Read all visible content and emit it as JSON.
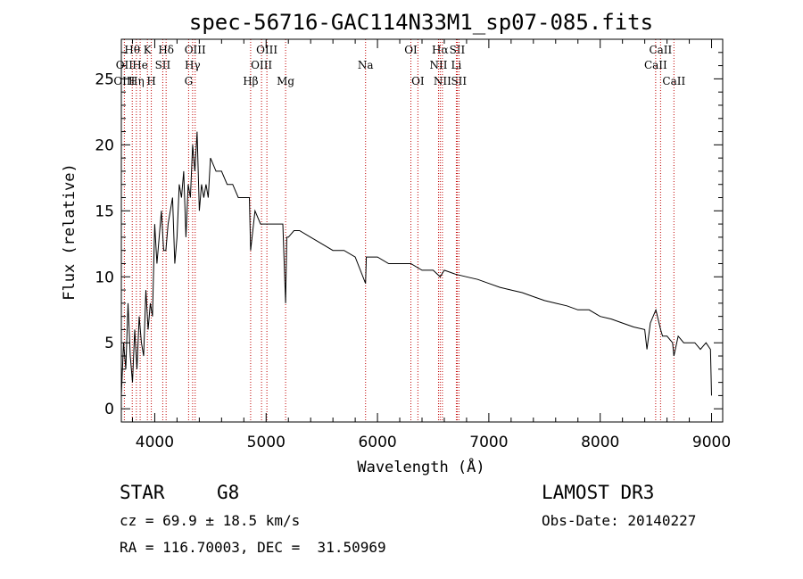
{
  "chart_data": {
    "type": "line",
    "title": "spec-56716-GAC114N33M1_sp07-085.fits",
    "xlabel": "Wavelength (Å)",
    "ylabel": "Flux (relative)",
    "xlim": [
      3700,
      9100
    ],
    "ylim": [
      -1,
      28
    ],
    "xticks": [
      4000,
      5000,
      6000,
      7000,
      8000,
      9000
    ],
    "yticks": [
      0,
      5,
      10,
      15,
      20,
      25
    ],
    "series": [
      {
        "name": "flux",
        "x": [
          3700,
          3720,
          3740,
          3760,
          3780,
          3800,
          3820,
          3840,
          3860,
          3880,
          3900,
          3920,
          3940,
          3960,
          3980,
          4000,
          4020,
          4040,
          4060,
          4080,
          4100,
          4120,
          4140,
          4160,
          4180,
          4200,
          4220,
          4240,
          4260,
          4280,
          4300,
          4320,
          4340,
          4360,
          4380,
          4400,
          4420,
          4440,
          4460,
          4480,
          4500,
          4550,
          4600,
          4650,
          4700,
          4750,
          4800,
          4850,
          4861,
          4900,
          4950,
          5000,
          5050,
          5100,
          5150,
          5175,
          5185,
          5200,
          5250,
          5300,
          5400,
          5500,
          5600,
          5700,
          5800,
          5893,
          5900,
          6000,
          6100,
          6200,
          6300,
          6400,
          6500,
          6563,
          6600,
          6700,
          6800,
          6900,
          7000,
          7100,
          7200,
          7300,
          7400,
          7500,
          7600,
          7700,
          7800,
          7900,
          8000,
          8100,
          8200,
          8300,
          8400,
          8420,
          8450,
          8500,
          8542,
          8560,
          8600,
          8650,
          8662,
          8700,
          8750,
          8800,
          8850,
          8900,
          8950,
          8990,
          9000
        ],
        "y": [
          1,
          5,
          3,
          8,
          4,
          2,
          6,
          3,
          7,
          5,
          4,
          9,
          6,
          8,
          7,
          14,
          11,
          13,
          15,
          12,
          12,
          14,
          15,
          16,
          11,
          13,
          17,
          16,
          18,
          13,
          17,
          16,
          20,
          18,
          21,
          15,
          17,
          16,
          17,
          16,
          19,
          18,
          18,
          17,
          17,
          16,
          16,
          16,
          12,
          15,
          14,
          14,
          14,
          14,
          14,
          8,
          13,
          13,
          13.5,
          13.5,
          13,
          12.5,
          12,
          12,
          11.5,
          9.5,
          11.5,
          11.5,
          11,
          11,
          11,
          10.5,
          10.5,
          10,
          10.5,
          10.2,
          10,
          9.8,
          9.5,
          9.2,
          9,
          8.8,
          8.5,
          8.2,
          8,
          7.8,
          7.5,
          7.5,
          7,
          6.8,
          6.5,
          6.2,
          6,
          4.5,
          6.5,
          7.5,
          6,
          5.5,
          5.5,
          5,
          4,
          5.5,
          5,
          5,
          5,
          4.5,
          5,
          4.5,
          1
        ]
      }
    ],
    "lines": [
      {
        "label": "Hθ",
        "wave": 3798,
        "row": 0
      },
      {
        "label": "OII",
        "wave": 3727,
        "row": 1
      },
      {
        "label": "OIII",
        "wave": 3727,
        "row": 2
      },
      {
        "label": "He",
        "wave": 3869,
        "row": 1
      },
      {
        "label": "Hη",
        "wave": 3835,
        "row": 2
      },
      {
        "label": "K",
        "wave": 3934,
        "row": 0
      },
      {
        "label": "SII",
        "wave": 4072,
        "row": 1
      },
      {
        "label": "H",
        "wave": 3969,
        "row": 2
      },
      {
        "label": "Hδ",
        "wave": 4102,
        "row": 0
      },
      {
        "label": "OIII",
        "wave": 4363,
        "row": 0
      },
      {
        "label": "Hγ",
        "wave": 4340,
        "row": 1
      },
      {
        "label": "G",
        "wave": 4304,
        "row": 2
      },
      {
        "label": "OIII",
        "wave": 5007,
        "row": 0
      },
      {
        "label": "OIII",
        "wave": 4959,
        "row": 1
      },
      {
        "label": "Hβ",
        "wave": 4861,
        "row": 2
      },
      {
        "label": "Mg",
        "wave": 5175,
        "row": 2
      },
      {
        "label": "Na",
        "wave": 5893,
        "row": 1
      },
      {
        "label": "OI",
        "wave": 6300,
        "row": 0
      },
      {
        "label": "OI",
        "wave": 6363,
        "row": 2
      },
      {
        "label": "Hα",
        "wave": 6563,
        "row": 0
      },
      {
        "label": "SII",
        "wave": 6716,
        "row": 0
      },
      {
        "label": "NII",
        "wave": 6548,
        "row": 1
      },
      {
        "label": "Li",
        "wave": 6708,
        "row": 1
      },
      {
        "label": "NII",
        "wave": 6583,
        "row": 2
      },
      {
        "label": "SII",
        "wave": 6731,
        "row": 2
      },
      {
        "label": "CaII",
        "wave": 8542,
        "row": 0
      },
      {
        "label": "CaII",
        "wave": 8498,
        "row": 1
      },
      {
        "label": "CaII",
        "wave": 8662,
        "row": 2
      }
    ]
  },
  "info": {
    "object_class": "STAR",
    "subclass": "G8",
    "survey": "LAMOST DR3",
    "cz_text": "cz = 69.9 ± 18.5 km/s",
    "obs_date_text": "Obs-Date: 20140227",
    "coords_text": "RA = 116.70003, DEC =  31.50969"
  },
  "colors": {
    "spectrum": "#000000",
    "line_markers": "#c00000",
    "axes": "#000000"
  }
}
